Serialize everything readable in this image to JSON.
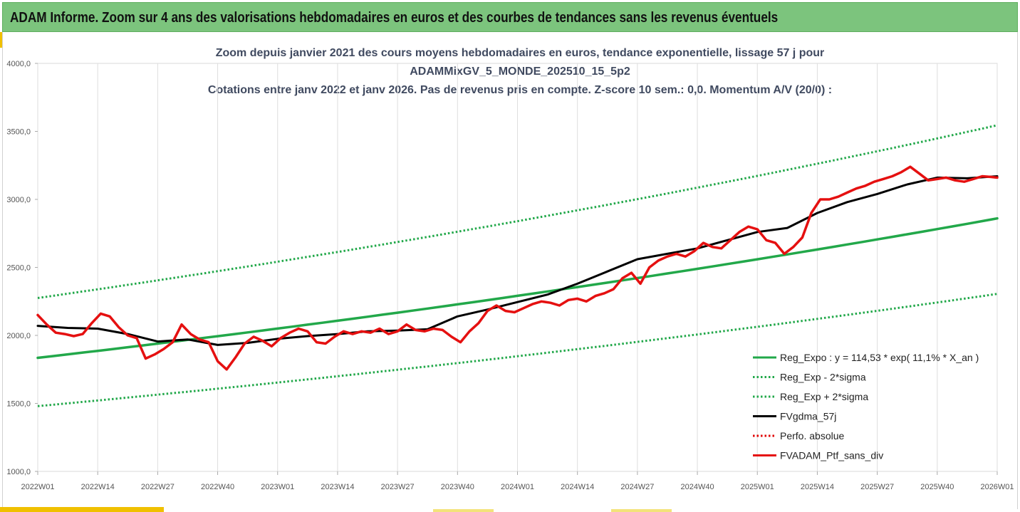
{
  "banner": {
    "title": "ADAM Informe. Zoom sur 4 ans des valorisations hebdomadaires en euros et des courbes de tendances sans les revenus éventuels"
  },
  "chart_data": {
    "type": "line",
    "title_lines": [
      "Zoom depuis janvier 2021 des cours moyens hebdomadaires  en euros, tendance exponentielle, lissage 57 j pour",
      "ADAMMixGV_5_MONDE_202510_15_5p2",
      "Cotations  entre janv 2022 et janv 2026. Pas de revenus pris en compte. Z-score 10 sem.: 0,0. Momentum A/V (20/0) :"
    ],
    "x_categories": [
      "2022W01",
      "2022W14",
      "2022W27",
      "2022W40",
      "2023W01",
      "2023W14",
      "2023W27",
      "2023W40",
      "2024W01",
      "2024W14",
      "2024W27",
      "2024W40",
      "2025W01",
      "2025W14",
      "2025W27",
      "2025W40",
      "2026W01"
    ],
    "y_ticks": [
      "1000,0",
      "1500,0",
      "2000,0",
      "2500,0",
      "3000,0",
      "3500,0",
      "4000,0"
    ],
    "ylim": [
      1000,
      4000
    ],
    "xlim": [
      0,
      16
    ],
    "grid": "vertical",
    "legend_position": "bottom-right",
    "series": [
      {
        "name": "Reg_Expo : y = 114,53 * exp( 11,1% *  X_an )",
        "color": "#22a84a",
        "style": "solid",
        "x": [
          0,
          16
        ],
        "y": [
          1835,
          2860
        ],
        "curve": "exponential"
      },
      {
        "name": "Reg_Exp - 2*sigma",
        "color": "#22a84a",
        "style": "dotted",
        "x": [
          0,
          16
        ],
        "y": [
          1480,
          2305
        ],
        "curve": "exponential"
      },
      {
        "name": "Reg_Exp + 2*sigma",
        "color": "#22a84a",
        "style": "dotted",
        "x": [
          0,
          16
        ],
        "y": [
          2275,
          3545
        ],
        "curve": "exponential"
      },
      {
        "name": "FVgdma_57j",
        "color": "#000000",
        "style": "solid",
        "x": [
          0,
          0.5,
          1,
          1.5,
          2,
          2.5,
          3,
          3.5,
          4,
          4.5,
          5,
          5.5,
          6,
          6.5,
          7,
          7.5,
          8,
          8.5,
          9,
          9.5,
          10,
          10.5,
          11,
          11.5,
          12,
          12.5,
          13,
          13.5,
          14,
          14.5,
          15,
          15.5,
          16
        ],
        "y": [
          2070,
          2055,
          2050,
          2010,
          1955,
          1970,
          1930,
          1945,
          1975,
          1995,
          2010,
          2030,
          2035,
          2045,
          2140,
          2190,
          2245,
          2300,
          2380,
          2470,
          2560,
          2600,
          2640,
          2700,
          2760,
          2790,
          2900,
          2980,
          3040,
          3110,
          3160,
          3155,
          3170
        ]
      },
      {
        "name": "Perfo. absolue",
        "color": "#e00000",
        "style": "dotted",
        "x": [],
        "y": []
      },
      {
        "name": "FVADAM_Ptf_sans_div",
        "color": "#e51010",
        "style": "solid",
        "x": [
          0,
          0.15,
          0.3,
          0.45,
          0.6,
          0.75,
          0.9,
          1.05,
          1.2,
          1.35,
          1.5,
          1.65,
          1.8,
          1.95,
          2.1,
          2.25,
          2.4,
          2.55,
          2.7,
          2.85,
          3,
          3.15,
          3.3,
          3.45,
          3.6,
          3.75,
          3.9,
          4.05,
          4.2,
          4.35,
          4.5,
          4.65,
          4.8,
          4.95,
          5.1,
          5.25,
          5.4,
          5.55,
          5.7,
          5.85,
          6,
          6.15,
          6.3,
          6.45,
          6.6,
          6.75,
          6.9,
          7.05,
          7.2,
          7.35,
          7.5,
          7.65,
          7.8,
          7.95,
          8.1,
          8.25,
          8.4,
          8.55,
          8.7,
          8.85,
          9,
          9.15,
          9.3,
          9.45,
          9.6,
          9.75,
          9.9,
          10.05,
          10.2,
          10.35,
          10.5,
          10.65,
          10.8,
          10.95,
          11.1,
          11.25,
          11.4,
          11.55,
          11.7,
          11.85,
          12,
          12.15,
          12.3,
          12.45,
          12.6,
          12.75,
          12.9,
          13.05,
          13.2,
          13.35,
          13.5,
          13.65,
          13.8,
          13.95,
          14.1,
          14.25,
          14.4,
          14.55,
          14.7,
          14.85,
          15,
          15.15,
          15.3,
          15.45,
          15.6,
          15.75,
          15.9,
          16
        ],
        "y": [
          2150,
          2080,
          2020,
          2010,
          1995,
          2010,
          2090,
          2160,
          2140,
          2060,
          2000,
          1980,
          1830,
          1860,
          1900,
          1950,
          2080,
          2010,
          1970,
          1950,
          1810,
          1750,
          1840,
          1940,
          1990,
          1960,
          1920,
          1980,
          2020,
          2050,
          2030,
          1950,
          1940,
          1990,
          2030,
          2010,
          2030,
          2020,
          2050,
          2010,
          2030,
          2080,
          2040,
          2030,
          2050,
          2040,
          1990,
          1950,
          2030,
          2090,
          2180,
          2220,
          2180,
          2170,
          2200,
          2230,
          2250,
          2240,
          2220,
          2260,
          2270,
          2250,
          2290,
          2310,
          2340,
          2420,
          2460,
          2380,
          2500,
          2550,
          2580,
          2600,
          2580,
          2620,
          2680,
          2650,
          2640,
          2700,
          2760,
          2800,
          2780,
          2700,
          2680,
          2600,
          2650,
          2720,
          2900,
          3000,
          3000,
          3020,
          3050,
          3080,
          3100,
          3130,
          3150,
          3170,
          3200,
          3240,
          3190,
          3140,
          3150,
          3160,
          3140,
          3130,
          3150,
          3170,
          3165,
          3160
        ]
      }
    ]
  }
}
